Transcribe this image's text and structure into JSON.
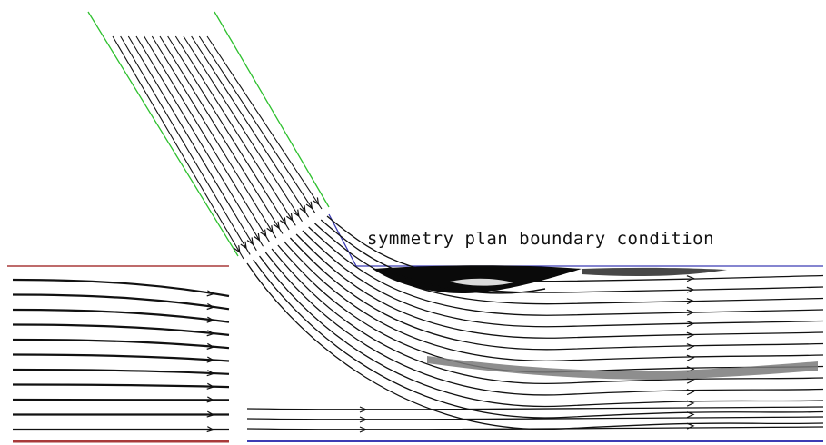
{
  "annotation": {
    "text": "symmetry plan boundary condition"
  },
  "colors": {
    "background": "#ffffff",
    "streamline": "#111111",
    "jet_wall": "#2ec02e",
    "crossflow_wall": "#a83a3a",
    "symmetry_boundary": "#3c3cb4",
    "recirculation": "#0a0a0a"
  }
}
